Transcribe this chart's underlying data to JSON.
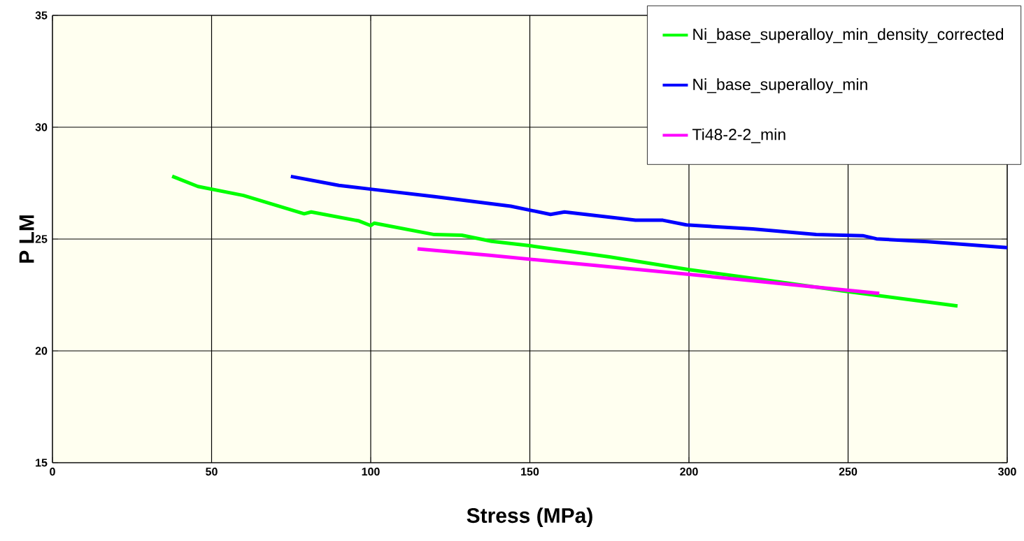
{
  "chart_data": {
    "type": "line",
    "xlabel": "Stress (MPa)",
    "ylabel": "P LM",
    "xlim": [
      0,
      300
    ],
    "ylim": [
      15,
      35
    ],
    "xticks": [
      0,
      50,
      100,
      150,
      200,
      250,
      300
    ],
    "yticks": [
      15,
      20,
      25,
      30,
      35
    ],
    "grid": true,
    "legend": "top right",
    "marker": "none",
    "line_style": "solid",
    "series": [
      {
        "name": "Ni_base_superalloy_min_density_corrected",
        "color": "#00ff00",
        "x": [
          37.6,
          45.7,
          60,
          79.1,
          81.3,
          96.3,
          100,
          101.1,
          120,
          128.6,
          138,
          150,
          175,
          200,
          225,
          250,
          284.4
        ],
        "values": [
          27.81,
          27.35,
          26.95,
          26.13,
          26.21,
          25.81,
          25.6,
          25.71,
          25.2,
          25.17,
          24.9,
          24.7,
          24.2,
          23.63,
          23.15,
          22.65,
          22.01
        ]
      },
      {
        "name": "Ni_base_superalloy_min",
        "color": "#0000ff",
        "x": [
          74.9,
          90,
          100,
          120,
          144,
          156.5,
          160.9,
          183.2,
          191.8,
          199.2,
          220,
          240,
          254.6,
          258.9,
          275,
          300
        ],
        "values": [
          27.8,
          27.4,
          27.23,
          26.9,
          26.47,
          26.1,
          26.21,
          25.84,
          25.84,
          25.63,
          25.45,
          25.2,
          25.15,
          25.01,
          24.88,
          24.62
        ]
      },
      {
        "name": "Ti48-2-2_min",
        "color": "#ff00ff",
        "x": [
          114.7,
          137.4,
          200,
          259.8
        ],
        "values": [
          24.56,
          24.27,
          23.42,
          22.57
        ]
      }
    ]
  }
}
